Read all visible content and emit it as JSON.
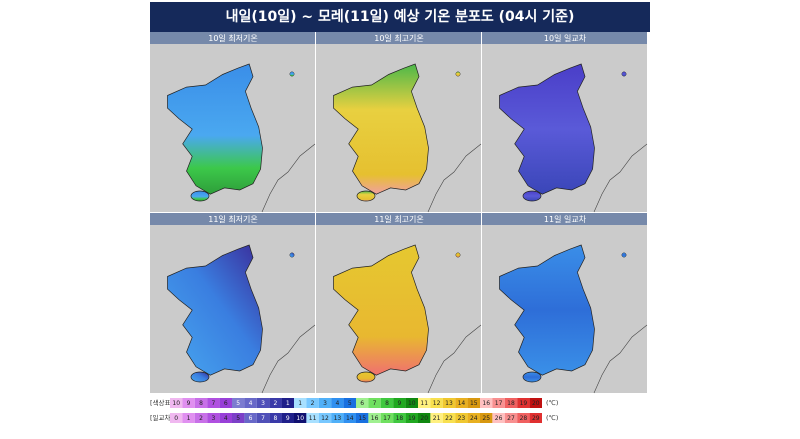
{
  "header": {
    "title": "내일(10일) ~ 모레(11일) 예상 기온 분포도 (04시 기준)"
  },
  "panels": [
    {
      "title": "10일 최저기온"
    },
    {
      "title": "10일 최고기온"
    },
    {
      "title": "10일 일교차"
    },
    {
      "title": "11일 최저기온"
    },
    {
      "title": "11일 최고기온"
    },
    {
      "title": "11일 일교차"
    }
  ],
  "legend": [
    {
      "label": "[색상표]",
      "values": [
        10,
        9,
        8,
        7,
        6,
        5,
        4,
        3,
        2,
        1,
        1,
        2,
        3,
        4,
        5,
        6,
        7,
        8,
        9,
        10,
        11,
        12,
        13,
        14,
        15,
        16,
        17,
        18,
        19,
        20
      ],
      "unit": "(℃)"
    },
    {
      "label": "[일교차]",
      "values": [
        0,
        1,
        2,
        3,
        4,
        5,
        6,
        7,
        8,
        9,
        10,
        11,
        12,
        13,
        14,
        15,
        16,
        17,
        18,
        19,
        20,
        21,
        22,
        23,
        24,
        25,
        26,
        27,
        28,
        29
      ],
      "unit": "(℃)"
    }
  ]
}
